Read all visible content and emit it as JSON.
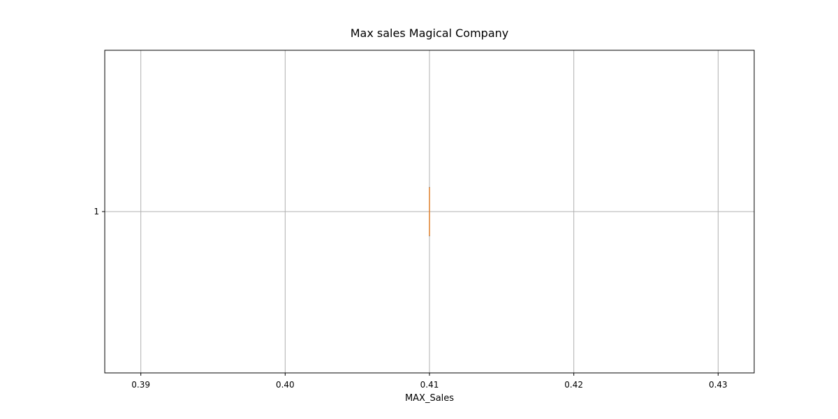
{
  "chart_data": {
    "type": "boxplot",
    "orientation": "horizontal",
    "title": "Max sales Magical Company",
    "xlabel": "MAX_Sales",
    "ylabel": "",
    "xlim": [
      0.3875,
      0.4325
    ],
    "x_ticks": [
      0.39,
      0.4,
      0.41,
      0.42,
      0.43
    ],
    "x_tick_labels": [
      "0.39",
      "0.40",
      "0.41",
      "0.42",
      "0.43"
    ],
    "y_ticks": [
      1
    ],
    "y_tick_labels": [
      "1"
    ],
    "grid": true,
    "series": [
      {
        "position": 1,
        "min": 0.41,
        "q1": 0.41,
        "median": 0.41,
        "q3": 0.41,
        "max": 0.41
      }
    ],
    "colors": {
      "grid": "#b0b0b0",
      "box": "#000000",
      "median": "#e1812c",
      "axes": "#000000"
    }
  }
}
